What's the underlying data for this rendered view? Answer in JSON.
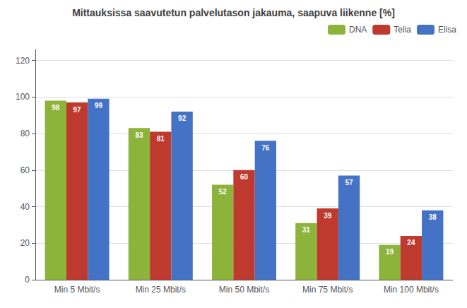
{
  "chart_data": {
    "type": "bar",
    "title": "Mittauksissa saavutetun palvelutason jakauma, saapuva liikenne [%]",
    "categories": [
      "Min 5 Mbit/s",
      "Min 25 Mbit/s",
      "Min 50 Mbit/s",
      "Min 75 Mbit/s",
      "Min 100 Mbit/s"
    ],
    "series": [
      {
        "name": "DNA",
        "color": "#8CB33A",
        "values": [
          98,
          83,
          52,
          31,
          19
        ]
      },
      {
        "name": "Telia",
        "color": "#BE3A2E",
        "values": [
          97,
          81,
          60,
          39,
          24
        ]
      },
      {
        "name": "Elisa",
        "color": "#4472C4",
        "values": [
          99,
          92,
          76,
          57,
          38
        ]
      }
    ],
    "ylim": [
      0,
      126
    ],
    "yticks": [
      0,
      20,
      40,
      60,
      80,
      100,
      120
    ],
    "grid": true,
    "legend": "upper right",
    "data_labels": true
  }
}
